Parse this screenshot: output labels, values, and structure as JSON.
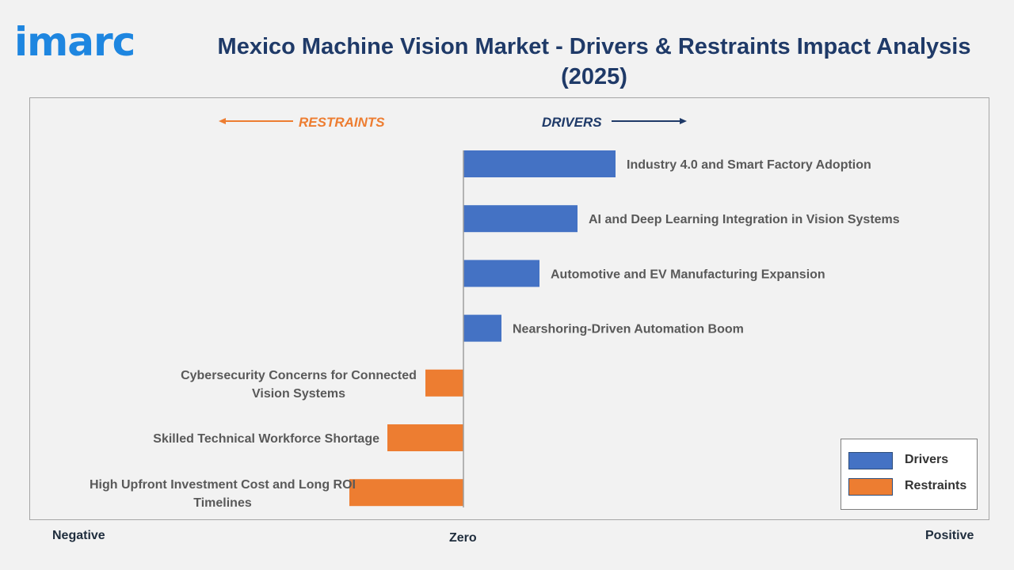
{
  "header": {
    "logo_text": "imarc",
    "title": "Mexico Machine Vision Market - Drivers & Restraints Impact Analysis (2025)"
  },
  "colors": {
    "logo": "#1e86e0",
    "title": "#1f3a68",
    "drivers": "#4472c4",
    "restraints": "#ed7d31",
    "drivers_header": "#1f3a68",
    "restraints_header": "#ed7d31",
    "axis_line": "#9e9e9e",
    "label_text": "#595959"
  },
  "axis": {
    "negative_label": "Negative",
    "zero_label": "Zero",
    "positive_label": "Positive"
  },
  "chart_data": {
    "type": "bar",
    "orientation": "horizontal",
    "headers": {
      "restraints": "RESTRAINTS",
      "drivers": "DRIVERS"
    },
    "categories": [
      "Industry 4.0 and Smart Factory Adoption",
      "AI and Deep Learning Integration in Vision Systems",
      "Automotive and EV Manufacturing Expansion",
      "Nearshoring-Driven Automation Boom",
      "Cybersecurity Concerns for Connected Vision Systems",
      "Skilled Technical Workforce Shortage",
      "High Upfront Investment Cost and Long ROI Timelines"
    ],
    "series": [
      {
        "name": "Drivers",
        "values": [
          4,
          3,
          2,
          1,
          0,
          0,
          0
        ]
      },
      {
        "name": "Restraints",
        "values": [
          0,
          0,
          0,
          0,
          -1,
          -2,
          -3
        ]
      }
    ],
    "xlim": [
      -12,
      14
    ],
    "grid": false,
    "legend_position": "bottom-right"
  },
  "legend": {
    "items": [
      {
        "label": "Drivers",
        "color": "#4472c4"
      },
      {
        "label": "Restraints",
        "color": "#ed7d31"
      }
    ]
  }
}
